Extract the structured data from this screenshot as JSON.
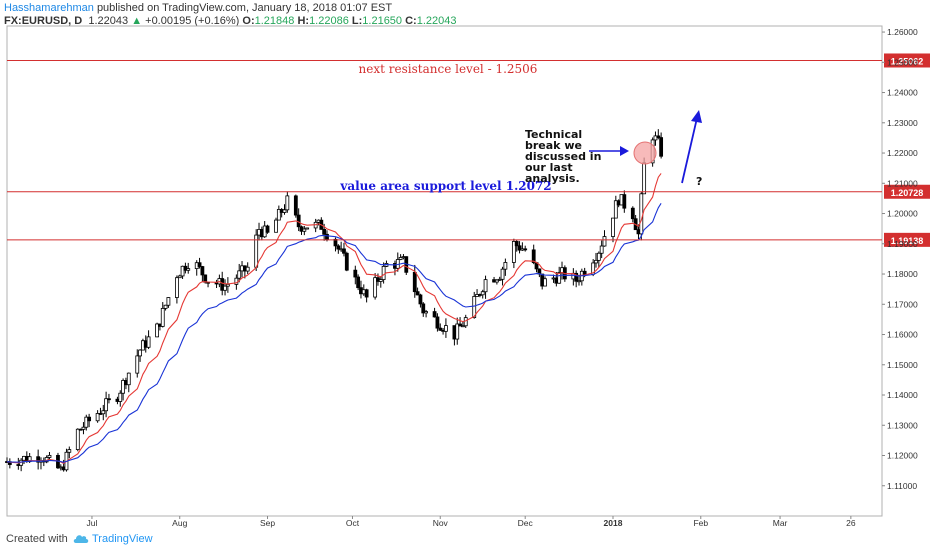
{
  "header": {
    "author": "Hasshamarehman",
    "published": "published on TradingView.com, January 18, 2018 01:07 EST",
    "symbol": "FX:EURUSD, D",
    "last": "1.22043",
    "change_arrow": "▲",
    "change": "+0.00195 (+0.16%)",
    "o_label": "O:",
    "open": "1.21848",
    "h_label": "H:",
    "high": "1.22086",
    "l_label": "L:",
    "low": "1.21650",
    "c_label": "C:",
    "close": "1.22043"
  },
  "footer": {
    "created": "Created with",
    "brand": "TradingView",
    "logo_icon": "tradingview-cloud-icon"
  },
  "colors": {
    "up": "#ffffff",
    "down": "#000000",
    "ema_fast": "#e53935",
    "ema_slow": "#1a34d6",
    "level": "#d32f2f",
    "annotation_blue": "#1a1adb",
    "highlight": "#f4a3a3"
  },
  "chart_data": {
    "type": "candlestick",
    "ylim": [
      1.1,
      1.262
    ],
    "y_ticks": [
      "1.26000",
      "1.25000",
      "1.24000",
      "1.23000",
      "1.22000",
      "1.21000",
      "1.20000",
      "1.19000",
      "1.18000",
      "1.17000",
      "1.16000",
      "1.15000",
      "1.14000",
      "1.13000",
      "1.12000",
      "1.11000"
    ],
    "x_ticks": [
      {
        "label": "Jul",
        "date": "2017-07-01"
      },
      {
        "label": "Aug",
        "date": "2017-08-01"
      },
      {
        "label": "Sep",
        "date": "2017-09-01"
      },
      {
        "label": "Oct",
        "date": "2017-10-01"
      },
      {
        "label": "Nov",
        "date": "2017-11-01"
      },
      {
        "label": "Dec",
        "date": "2017-12-01"
      },
      {
        "label": "2018",
        "date": "2018-01-01"
      },
      {
        "label": "Feb",
        "date": "2018-02-01"
      },
      {
        "label": "Mar",
        "date": "2018-03-01"
      },
      {
        "label": "26",
        "date": "2018-03-26"
      }
    ],
    "date_range": [
      "2017-06-01",
      "2018-04-06"
    ],
    "price_path": [
      [
        "2017-06-01",
        1.118
      ],
      [
        "2017-06-13",
        1.12
      ],
      [
        "2017-06-20",
        1.115
      ],
      [
        "2017-06-26",
        1.128
      ],
      [
        "2017-07-04",
        1.135
      ],
      [
        "2017-07-10",
        1.14
      ],
      [
        "2017-07-18",
        1.155
      ],
      [
        "2017-07-24",
        1.162
      ],
      [
        "2017-07-31",
        1.18
      ],
      [
        "2017-08-05",
        1.185
      ],
      [
        "2017-08-11",
        1.178
      ],
      [
        "2017-08-17",
        1.176
      ],
      [
        "2017-08-25",
        1.182
      ],
      [
        "2017-08-29",
        1.195
      ],
      [
        "2017-09-01",
        1.193
      ],
      [
        "2017-09-08",
        1.204
      ],
      [
        "2017-09-12",
        1.196
      ],
      [
        "2017-09-20",
        1.196
      ],
      [
        "2017-09-25",
        1.19
      ],
      [
        "2017-10-02",
        1.178
      ],
      [
        "2017-10-06",
        1.172
      ],
      [
        "2017-10-13",
        1.183
      ],
      [
        "2017-10-19",
        1.184
      ],
      [
        "2017-10-26",
        1.168
      ],
      [
        "2017-11-06",
        1.16
      ],
      [
        "2017-11-10",
        1.165
      ],
      [
        "2017-11-17",
        1.178
      ],
      [
        "2017-11-22",
        1.18
      ],
      [
        "2017-11-27",
        1.19
      ],
      [
        "2017-12-01",
        1.188
      ],
      [
        "2017-12-07",
        1.177
      ],
      [
        "2017-12-14",
        1.18
      ],
      [
        "2017-12-19",
        1.178
      ],
      [
        "2017-12-27",
        1.188
      ],
      [
        "2018-01-03",
        1.205
      ],
      [
        "2018-01-08",
        1.2
      ],
      [
        "2018-01-10",
        1.193
      ],
      [
        "2018-01-12",
        1.216
      ],
      [
        "2018-01-15",
        1.226
      ],
      [
        "2018-01-17",
        1.223
      ],
      [
        "2018-01-18",
        1.2204
      ]
    ],
    "levels": [
      {
        "value": 1.2506,
        "tag": "1.25062"
      },
      {
        "value": 1.2072,
        "tag": "1.20728"
      },
      {
        "value": 1.1913,
        "tag": "1.19138"
      }
    ],
    "annotations": {
      "resistance": "next resistance level - 1.2506",
      "support": "value area support level 1.2072",
      "note_lines": [
        "Technical",
        "break we",
        "discussed in",
        "our last",
        "analysis."
      ],
      "question": "?"
    },
    "series": [
      {
        "type": "ema_fast"
      },
      {
        "type": "ema_slow"
      }
    ],
    "grid": false
  }
}
